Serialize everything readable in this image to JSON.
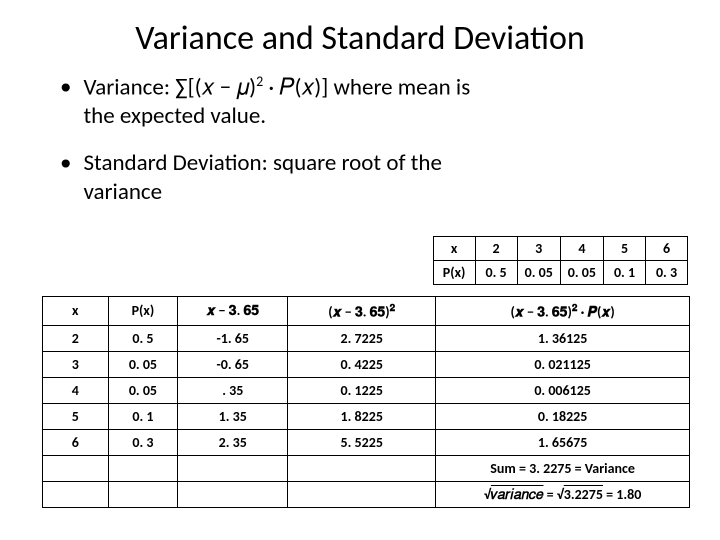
{
  "title": "Variance and Standard Deviation",
  "bullet1_a": "Variance: ",
  "bullet1_sigma": "∑[(𝑥 − 𝜇)",
  "bullet1_exp": "2",
  "bullet1_rest": " · 𝑃(𝑥)] where mean is",
  "bullet1_line2": "the expected value.",
  "bullet2_a": "Standard Deviation: square root of the",
  "bullet2_b": "variance",
  "small_table": {
    "row1": {
      "label": "x",
      "v1": "2",
      "v2": "3",
      "v3": "4",
      "v4": "5",
      "v5": "6"
    },
    "row2": {
      "label": "P(x)",
      "v1": "0. 5",
      "v2": "0. 05",
      "v3": "0. 05",
      "v4": "0. 1",
      "v5": "0. 3"
    }
  },
  "big_table": {
    "head": {
      "c1": "x",
      "c2": "P(x)",
      "c3a": "𝒙 − 𝟑. 𝟔𝟓",
      "c4a": "(𝒙 − 𝟑. 𝟔𝟓)",
      "c4exp": "𝟐",
      "c5a": "(𝒙 − 𝟑. 𝟔𝟓)",
      "c5exp": "𝟐",
      "c5b": " · 𝑷(𝒙)"
    },
    "r1": {
      "x": "2",
      "px": "0. 5",
      "d": "-1. 65",
      "d2": "2. 7225",
      "prod": "1. 36125"
    },
    "r2": {
      "x": "3",
      "px": "0. 05",
      "d": "-0. 65",
      "d2": "0. 4225",
      "prod": "0. 021125"
    },
    "r3": {
      "x": "4",
      "px": "0. 05",
      "d": ". 35",
      "d2": "0. 1225",
      "prod": "0. 006125"
    },
    "r4": {
      "x": "5",
      "px": "0. 1",
      "d": "1. 35",
      "d2": "1. 8225",
      "prod": "0. 18225"
    },
    "r5": {
      "x": "6",
      "px": "0. 3",
      "d": "2. 35",
      "d2": "5. 5225",
      "prod": "1. 65675"
    },
    "sum": "Sum = 3. 2275 = Variance",
    "final_a": "𝑣𝑎𝑟𝑖𝑎𝑛𝑐𝑒",
    "final_b": "3.2275",
    "final_c": " = 1.80"
  }
}
